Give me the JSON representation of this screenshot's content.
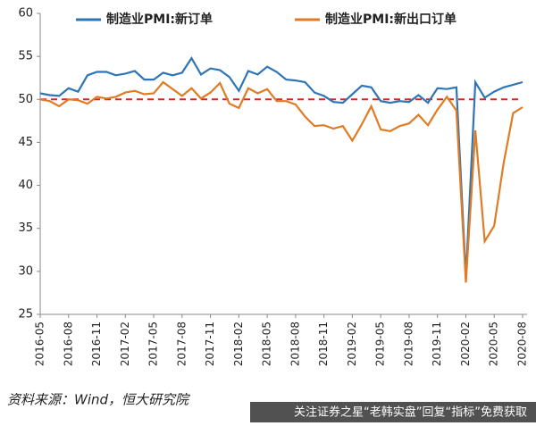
{
  "chart_data": {
    "type": "line",
    "categories": [
      "2016-05",
      null,
      null,
      "2016-08",
      null,
      null,
      "2016-11",
      null,
      null,
      "2017-02",
      null,
      null,
      "2017-05",
      null,
      null,
      "2017-08",
      null,
      null,
      "2017-11",
      null,
      null,
      "2018-02",
      null,
      null,
      "2018-05",
      null,
      null,
      "2018-08",
      null,
      null,
      "2018-11",
      null,
      null,
      "2019-02",
      null,
      null,
      "2019-05",
      null,
      null,
      "2019-08",
      null,
      null,
      "2019-11",
      null,
      null,
      "2020-02",
      null,
      null,
      "2020-05",
      null,
      null,
      "2020-08"
    ],
    "series": [
      {
        "name": "制造业PMI:新订单",
        "color": "#2e75b6",
        "values": [
          50.7,
          50.5,
          50.4,
          51.3,
          50.9,
          52.8,
          53.2,
          53.2,
          52.8,
          53.0,
          53.3,
          52.3,
          52.3,
          53.1,
          52.8,
          53.1,
          54.8,
          52.9,
          53.6,
          53.4,
          52.6,
          51.0,
          53.3,
          52.9,
          53.8,
          53.2,
          52.3,
          52.2,
          52.0,
          50.8,
          50.4,
          49.7,
          49.6,
          50.6,
          51.6,
          51.4,
          49.8,
          49.6,
          49.8,
          49.7,
          50.5,
          49.6,
          51.3,
          51.2,
          51.4,
          29.3,
          52.0,
          50.2,
          50.9,
          51.4,
          51.7,
          52.0
        ]
      },
      {
        "name": "制造业PMI:新出口订单",
        "color": "#e07b24",
        "values": [
          50.0,
          49.8,
          49.2,
          50.0,
          49.9,
          49.5,
          50.3,
          50.1,
          50.3,
          50.8,
          51.0,
          50.6,
          50.7,
          52.0,
          51.2,
          50.4,
          51.3,
          50.1,
          50.8,
          51.9,
          49.5,
          49.0,
          51.3,
          50.7,
          51.2,
          49.8,
          49.8,
          49.4,
          48.0,
          46.9,
          47.0,
          46.6,
          46.9,
          45.2,
          47.1,
          49.2,
          46.5,
          46.3,
          46.9,
          47.2,
          48.2,
          47.0,
          48.8,
          50.3,
          48.7,
          28.7,
          46.4,
          33.5,
          35.3,
          42.6,
          48.4,
          49.1
        ]
      }
    ],
    "ylim": [
      25,
      60
    ],
    "yticks": [
      25,
      30,
      35,
      40,
      45,
      50,
      55,
      60
    ],
    "reference_line": {
      "value": 50,
      "color": "#e02020"
    },
    "legend": "top",
    "source": "资料来源：Wind，恒大研究院",
    "watermark": "关注证券之星“老韩实盘”回复“指标”免费获取"
  }
}
